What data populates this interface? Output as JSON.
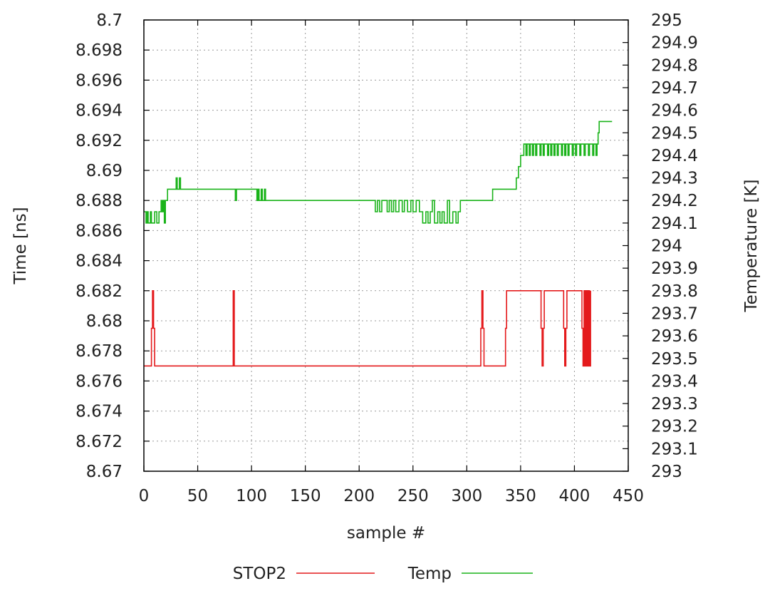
{
  "chart_data": {
    "type": "line",
    "title": "",
    "xlabel": "sample #",
    "ylabel": "Time [ns]",
    "y2label": "Temperature [K]",
    "xlim": [
      0,
      450
    ],
    "ylim": [
      8.67,
      8.7
    ],
    "y2lim": [
      293,
      295
    ],
    "grid": true,
    "legend": "bottom",
    "x_ticks": [
      "0",
      "50",
      "100",
      "150",
      "200",
      "250",
      "300",
      "350",
      "400",
      "450"
    ],
    "y_ticks": [
      "8.67",
      "8.672",
      "8.674",
      "8.676",
      "8.678",
      "8.68",
      "8.682",
      "8.684",
      "8.686",
      "8.688",
      "8.69",
      "8.692",
      "8.694",
      "8.696",
      "8.698",
      "8.7"
    ],
    "y2_ticks": [
      "293",
      "293.1",
      "293.2",
      "293.3",
      "293.4",
      "293.5",
      "293.6",
      "293.7",
      "293.8",
      "293.9",
      "294",
      "294.1",
      "294.2",
      "294.3",
      "294.4",
      "294.5",
      "294.6",
      "294.7",
      "294.8",
      "294.9",
      "295"
    ],
    "series": [
      {
        "name": "STOP2",
        "axis": "left",
        "color": "#e41a1c",
        "points": [
          [
            0,
            8.677
          ],
          [
            6,
            8.677
          ],
          [
            7,
            8.6795
          ],
          [
            8,
            8.682
          ],
          [
            9,
            8.6795
          ],
          [
            10,
            8.677
          ],
          [
            82,
            8.677
          ],
          [
            83,
            8.682
          ],
          [
            84,
            8.677
          ],
          [
            312,
            8.677
          ],
          [
            313,
            8.6795
          ],
          [
            314,
            8.682
          ],
          [
            315,
            8.6795
          ],
          [
            316,
            8.677
          ],
          [
            335,
            8.677
          ],
          [
            336,
            8.6795
          ],
          [
            337,
            8.682
          ],
          [
            368,
            8.682
          ],
          [
            369,
            8.6795
          ],
          [
            370,
            8.677
          ],
          [
            371,
            8.6795
          ],
          [
            372,
            8.682
          ],
          [
            389,
            8.682
          ],
          [
            390,
            8.6795
          ],
          [
            391,
            8.677
          ],
          [
            392,
            8.6795
          ],
          [
            393,
            8.682
          ],
          [
            406,
            8.682
          ],
          [
            407,
            8.6795
          ],
          [
            408,
            8.677
          ],
          [
            409,
            8.682
          ],
          [
            410,
            8.677
          ],
          [
            411,
            8.682
          ],
          [
            412,
            8.677
          ],
          [
            413,
            8.682
          ],
          [
            414,
            8.677
          ],
          [
            415,
            8.682
          ]
        ]
      },
      {
        "name": "Temp",
        "axis": "right",
        "color": "#1ab31a",
        "points": [
          [
            0,
            294.15
          ],
          [
            2,
            294.1
          ],
          [
            3,
            294.15
          ],
          [
            4,
            294.1
          ],
          [
            6,
            294.15
          ],
          [
            7,
            294.1
          ],
          [
            10,
            294.15
          ],
          [
            12,
            294.1
          ],
          [
            14,
            294.15
          ],
          [
            16,
            294.2
          ],
          [
            17,
            294.15
          ],
          [
            18,
            294.2
          ],
          [
            19,
            294.1
          ],
          [
            20,
            294.2
          ],
          [
            22,
            294.25
          ],
          [
            27,
            294.25
          ],
          [
            30,
            294.3
          ],
          [
            31,
            294.25
          ],
          [
            33,
            294.3
          ],
          [
            34,
            294.25
          ],
          [
            37,
            294.25
          ],
          [
            84,
            294.25
          ],
          [
            85,
            294.2
          ],
          [
            86,
            294.25
          ],
          [
            103,
            294.25
          ],
          [
            105,
            294.2
          ],
          [
            106,
            294.25
          ],
          [
            107,
            294.2
          ],
          [
            109,
            294.25
          ],
          [
            110,
            294.2
          ],
          [
            112,
            294.25
          ],
          [
            113,
            294.2
          ],
          [
            115,
            294.2
          ],
          [
            214,
            294.2
          ],
          [
            215,
            294.15
          ],
          [
            217,
            294.2
          ],
          [
            219,
            294.15
          ],
          [
            221,
            294.2
          ],
          [
            224,
            294.2
          ],
          [
            226,
            294.15
          ],
          [
            228,
            294.2
          ],
          [
            230,
            294.15
          ],
          [
            232,
            294.2
          ],
          [
            234,
            294.15
          ],
          [
            237,
            294.2
          ],
          [
            240,
            294.15
          ],
          [
            242,
            294.2
          ],
          [
            245,
            294.15
          ],
          [
            248,
            294.2
          ],
          [
            250,
            294.15
          ],
          [
            253,
            294.2
          ],
          [
            256,
            294.15
          ],
          [
            259,
            294.1
          ],
          [
            262,
            294.15
          ],
          [
            264,
            294.1
          ],
          [
            266,
            294.15
          ],
          [
            268,
            294.2
          ],
          [
            270,
            294.1
          ],
          [
            273,
            294.15
          ],
          [
            275,
            294.1
          ],
          [
            277,
            294.15
          ],
          [
            279,
            294.1
          ],
          [
            282,
            294.2
          ],
          [
            284,
            294.1
          ],
          [
            287,
            294.15
          ],
          [
            290,
            294.1
          ],
          [
            292,
            294.15
          ],
          [
            294,
            294.2
          ],
          [
            323,
            294.2
          ],
          [
            324,
            294.25
          ],
          [
            345,
            294.25
          ],
          [
            346,
            294.3
          ],
          [
            348,
            294.35
          ],
          [
            350,
            294.4
          ],
          [
            353,
            294.45
          ],
          [
            355,
            294.4
          ],
          [
            356,
            294.45
          ],
          [
            358,
            294.4
          ],
          [
            359,
            294.45
          ],
          [
            361,
            294.4
          ],
          [
            362,
            294.45
          ],
          [
            364,
            294.4
          ],
          [
            365,
            294.45
          ],
          [
            368,
            294.4
          ],
          [
            369,
            294.45
          ],
          [
            371,
            294.4
          ],
          [
            372,
            294.45
          ],
          [
            375,
            294.4
          ],
          [
            376,
            294.45
          ],
          [
            378,
            294.4
          ],
          [
            379,
            294.45
          ],
          [
            381,
            294.4
          ],
          [
            382,
            294.45
          ],
          [
            384,
            294.4
          ],
          [
            385,
            294.45
          ],
          [
            388,
            294.4
          ],
          [
            389,
            294.45
          ],
          [
            391,
            294.4
          ],
          [
            392,
            294.45
          ],
          [
            394,
            294.4
          ],
          [
            395,
            294.45
          ],
          [
            398,
            294.4
          ],
          [
            399,
            294.45
          ],
          [
            401,
            294.4
          ],
          [
            402,
            294.45
          ],
          [
            405,
            294.4
          ],
          [
            406,
            294.45
          ],
          [
            409,
            294.4
          ],
          [
            410,
            294.45
          ],
          [
            413,
            294.4
          ],
          [
            414,
            294.45
          ],
          [
            417,
            294.4
          ],
          [
            418,
            294.45
          ],
          [
            420,
            294.4
          ],
          [
            421,
            294.45
          ],
          [
            422,
            294.5
          ],
          [
            423,
            294.55
          ],
          [
            435,
            294.55
          ]
        ]
      }
    ]
  }
}
